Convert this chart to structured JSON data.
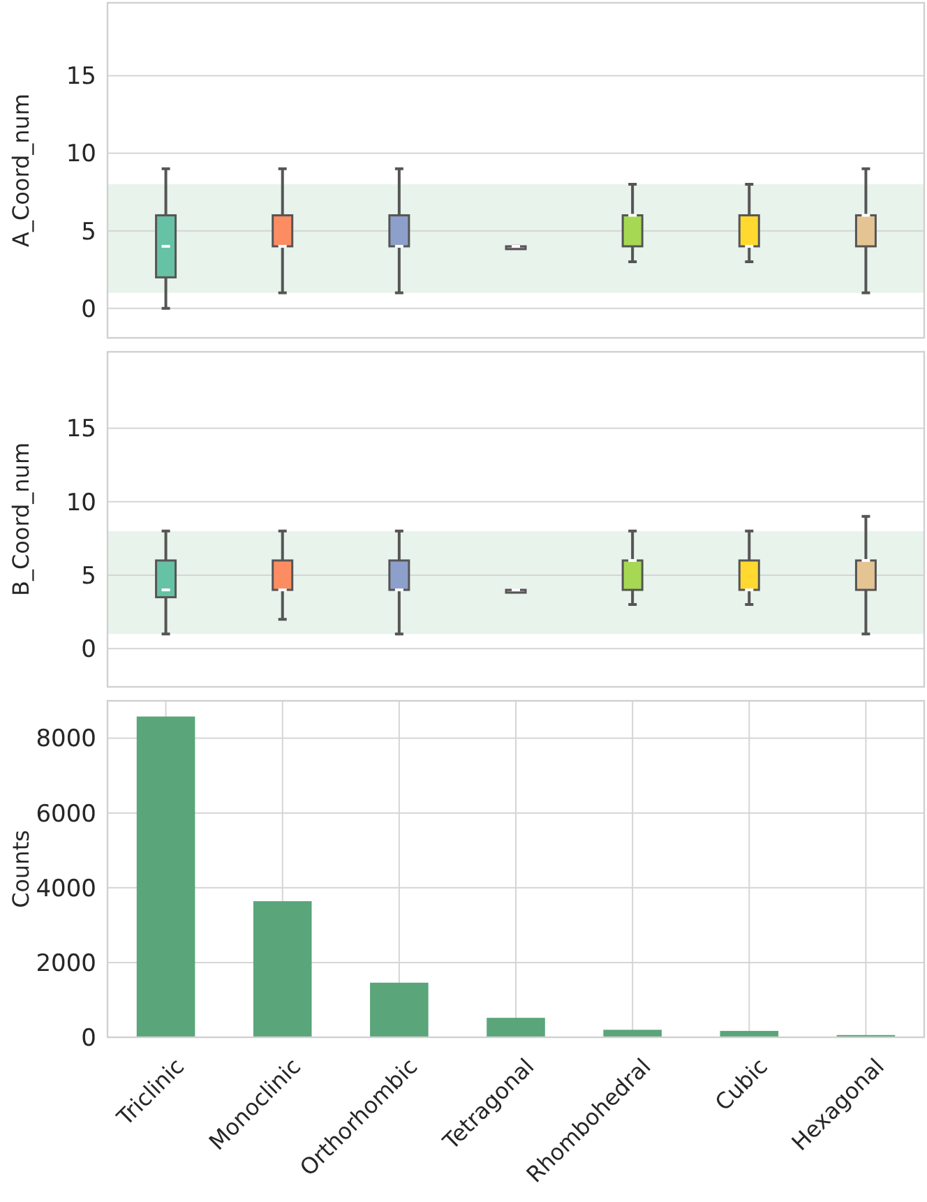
{
  "chart_data": [
    {
      "type": "box",
      "ylabel": "A_Coord_num",
      "categories": [
        null,
        null,
        null,
        null,
        null,
        null,
        null
      ],
      "colors": [
        "#66c2a5",
        "#fc8d62",
        "#8da0cb",
        "#e78ac3",
        "#a6d854",
        "#ffd92f",
        "#e5c494"
      ],
      "boxes": [
        {
          "low": 0,
          "q1": 2,
          "median": 4,
          "q3": 6,
          "high": 9
        },
        {
          "low": 1,
          "q1": 4,
          "median": 4,
          "q3": 6,
          "high": 9
        },
        {
          "low": 1,
          "q1": 4,
          "median": 4,
          "q3": 6,
          "high": 9
        },
        {
          "low": 4,
          "q1": 4,
          "median": 4,
          "q3": 4,
          "high": 4
        },
        {
          "low": 3,
          "q1": 4,
          "median": 6,
          "q3": 6,
          "high": 8
        },
        {
          "low": 3,
          "q1": 4,
          "median": 4,
          "q3": 6,
          "high": 8
        },
        {
          "low": 1,
          "q1": 4,
          "median": 6,
          "q3": 6,
          "high": 9
        }
      ],
      "ylim": [
        -1.9,
        19.7
      ],
      "yticks": [
        0,
        5,
        10,
        15
      ],
      "grid": "y",
      "tick_labels": "y",
      "bands": [
        {
          "axis": "y",
          "from": 1,
          "to": 8,
          "color": "#e8f3ec"
        }
      ]
    },
    {
      "type": "box",
      "ylabel": "B_Coord_num",
      "categories": [
        null,
        null,
        null,
        null,
        null,
        null,
        null
      ],
      "colors": [
        "#66c2a5",
        "#fc8d62",
        "#8da0cb",
        "#e78ac3",
        "#a6d854",
        "#ffd92f",
        "#e5c494"
      ],
      "boxes": [
        {
          "low": 1,
          "q1": 3.5,
          "median": 4,
          "q3": 6,
          "high": 8
        },
        {
          "low": 2,
          "q1": 4,
          "median": 4,
          "q3": 6,
          "high": 8
        },
        {
          "low": 1,
          "q1": 4,
          "median": 4,
          "q3": 6,
          "high": 8
        },
        {
          "low": 4,
          "q1": 4,
          "median": 4,
          "q3": 4,
          "high": 4
        },
        {
          "low": 3,
          "q1": 4,
          "median": 6,
          "q3": 6,
          "high": 8
        },
        {
          "low": 3,
          "q1": 4,
          "median": 4,
          "q3": 6,
          "high": 8
        },
        {
          "low": 1,
          "q1": 4,
          "median": 6,
          "q3": 6,
          "high": 9
        }
      ],
      "ylim": [
        -2.6,
        20.2
      ],
      "yticks": [
        0,
        5,
        10,
        15
      ],
      "grid": "y",
      "tick_labels": "y",
      "bands": [
        {
          "axis": "y",
          "from": 1,
          "to": 8,
          "color": "#e8f3ec"
        }
      ]
    },
    {
      "type": "bar",
      "ylabel": "Counts",
      "categories": [
        "Triclinic",
        "Monoclinic",
        "Orthorhombic",
        "Tetragonal",
        "Rhombohedral",
        "Cubic",
        "Hexagonal"
      ],
      "values": [
        8580,
        3640,
        1460,
        520,
        200,
        170,
        60
      ],
      "color": "#5aa57a",
      "ylim": [
        0,
        9000
      ],
      "yticks": [
        0,
        2000,
        4000,
        6000,
        8000
      ],
      "grid": true
    }
  ]
}
